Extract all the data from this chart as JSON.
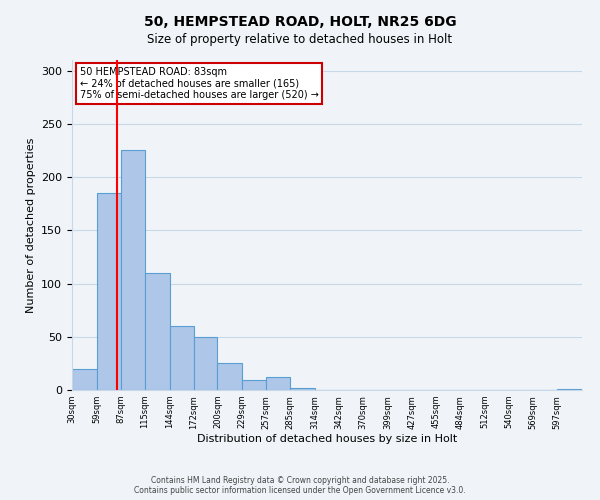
{
  "title_line1": "50, HEMPSTEAD ROAD, HOLT, NR25 6DG",
  "title_line2": "Size of property relative to detached houses in Holt",
  "xlabel": "Distribution of detached houses by size in Holt",
  "ylabel": "Number of detached properties",
  "bar_heights": [
    20,
    185,
    225,
    110,
    60,
    50,
    25,
    9,
    12,
    2,
    0,
    0,
    0,
    0,
    0,
    0,
    0,
    0,
    0,
    0,
    1
  ],
  "bin_edges": [
    30,
    59,
    87,
    115,
    144,
    172,
    200,
    229,
    257,
    285,
    314,
    342,
    370,
    399,
    427,
    455,
    484,
    512,
    540,
    569,
    597,
    626
  ],
  "tick_labels": [
    "30sqm",
    "59sqm",
    "87sqm",
    "115sqm",
    "144sqm",
    "172sqm",
    "200sqm",
    "229sqm",
    "257sqm",
    "285sqm",
    "314sqm",
    "342sqm",
    "370sqm",
    "399sqm",
    "427sqm",
    "455sqm",
    "484sqm",
    "512sqm",
    "540sqm",
    "569sqm",
    "597sqm"
  ],
  "bar_color": "#aec6e8",
  "bar_edge_color": "#5a9fd4",
  "red_line_x": 83,
  "ylim": [
    0,
    310
  ],
  "yticks": [
    0,
    50,
    100,
    150,
    200,
    250,
    300
  ],
  "annotation_title": "50 HEMPSTEAD ROAD: 83sqm",
  "annotation_line2": "← 24% of detached houses are smaller (165)",
  "annotation_line3": "75% of semi-detached houses are larger (520) →",
  "annotation_box_color": "#ffffff",
  "annotation_box_edge": "#cc0000",
  "footer_line1": "Contains HM Land Registry data © Crown copyright and database right 2025.",
  "footer_line2": "Contains public sector information licensed under the Open Government Licence v3.0.",
  "background_color": "#f0f4f8",
  "grid_color": "#c8d8e8"
}
